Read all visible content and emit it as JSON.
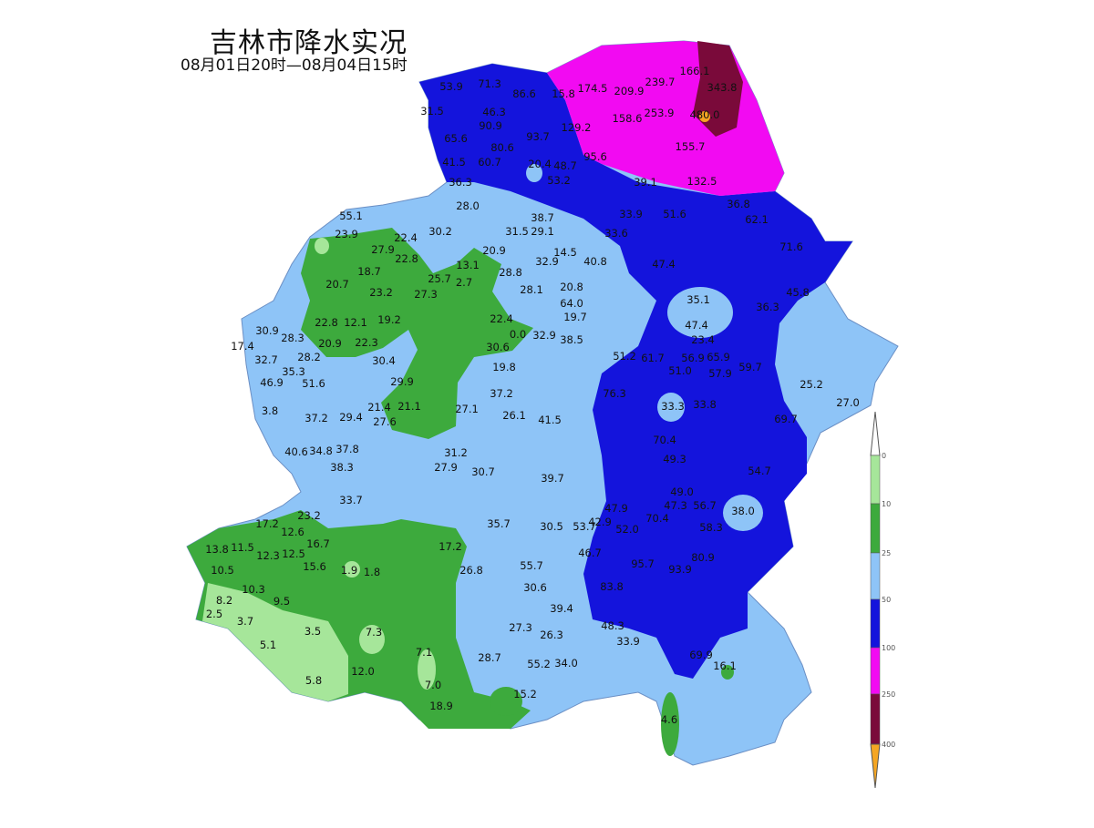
{
  "title": "吉林市降水实况",
  "subtitle": "08月01日20时—08月04日15时",
  "legend": {
    "thresholds": [
      "0",
      "10",
      "25",
      "50",
      "100",
      "250",
      "400"
    ],
    "colors": [
      "#ffffff",
      "#a6e69a",
      "#3daa3d",
      "#8ec4f7",
      "#1414dc",
      "#f20af2",
      "#7a0a3a",
      "#f5a623"
    ]
  },
  "stations": [
    "166.1",
    "343.8",
    "53.9",
    "71.3",
    "86.6",
    "15.8",
    "174.5",
    "209.9",
    "239.7",
    "46.3",
    "129.2",
    "158.6",
    "253.9",
    "480.0",
    "31.5",
    "90.9",
    "93.7",
    "65.6",
    "155.7",
    "80.6",
    "95.6",
    "41.5",
    "60.7",
    "20.4",
    "48.7",
    "132.5",
    "36.3",
    "53.2",
    "39.1",
    "28.0",
    "36.8",
    "38.7",
    "33.9",
    "51.6",
    "55.1",
    "30.2",
    "31.5",
    "29.1",
    "33.6",
    "62.1",
    "23.9",
    "22.4",
    "14.5",
    "40.8",
    "71.6",
    "27.9",
    "22.8",
    "20.9",
    "13.1",
    "28.8",
    "32.9",
    "47.4",
    "18.7",
    "20.7",
    "25.7",
    "2.7",
    "28.1",
    "20.8",
    "45.8",
    "23.2",
    "27.3",
    "64.0",
    "35.1",
    "36.3",
    "30.9",
    "22.8",
    "12.1",
    "19.2",
    "22.4",
    "19.7",
    "47.4",
    "23.4",
    "17.4",
    "28.3",
    "20.9",
    "22.3",
    "30.6",
    "0.0",
    "32.9",
    "38.5",
    "32.7",
    "28.2",
    "30.4",
    "19.8",
    "51.2",
    "61.7",
    "56.9",
    "65.9",
    "59.7",
    "35.3",
    "46.9",
    "51.6",
    "29.9",
    "51.0",
    "57.9",
    "25.2",
    "37.2",
    "76.3",
    "33.3",
    "33.8",
    "27.0",
    "3.8",
    "21.4",
    "21.1",
    "27.1",
    "26.1",
    "41.5",
    "69.7",
    "37.2",
    "29.4",
    "27.6",
    "70.4",
    "40.6",
    "34.8",
    "37.8",
    "31.2",
    "27.9",
    "49.3",
    "54.7",
    "38.3",
    "30.7",
    "39.7",
    "49.0",
    "33.7",
    "47.3",
    "56.7",
    "47.9",
    "42.9",
    "38.0",
    "23.2",
    "17.2",
    "35.7",
    "30.5",
    "53.7",
    "70.4",
    "58.3",
    "52.0",
    "12.6",
    "13.8",
    "11.5",
    "12.3",
    "12.5",
    "16.7",
    "17.2",
    "46.7",
    "15.6",
    "10.5",
    "26.8",
    "55.7",
    "95.7",
    "93.9",
    "80.9",
    "1.9",
    "1.8",
    "10.3",
    "30.6",
    "83.8",
    "9.5",
    "8.2",
    "39.4",
    "2.5",
    "3.7",
    "27.3",
    "26.3",
    "48.3",
    "3.5",
    "7.3",
    "5.1",
    "33.9",
    "69.9",
    "16.1",
    "28.7",
    "55.2",
    "34.0",
    "7.1",
    "12.0",
    "5.8",
    "7.0",
    "15.2",
    "18.9",
    "4.6"
  ]
}
